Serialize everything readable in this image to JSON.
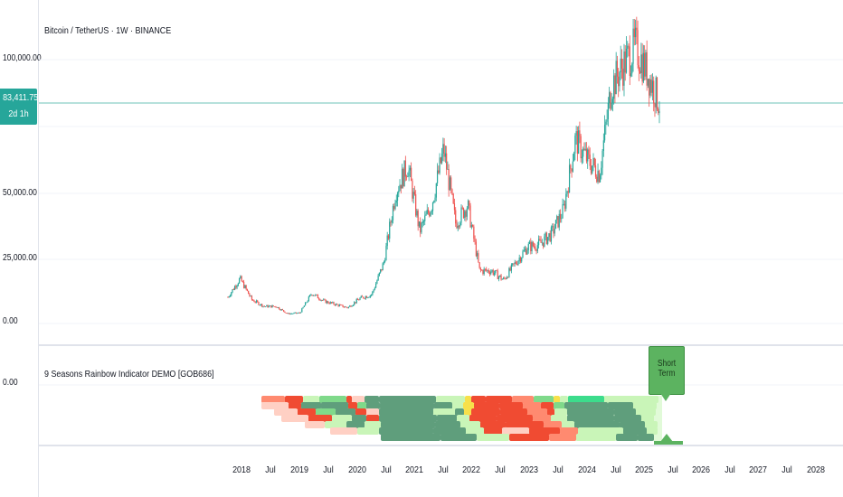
{
  "header": {
    "title": "Bitcoin / TetherUS · 1W · BINANCE"
  },
  "price_axis": {
    "labels": [
      "100,000.00",
      "50,000.00",
      "25,000.00",
      "0.00"
    ],
    "current_price": "83,411.75",
    "countdown": "2d 1h",
    "current_price_color": "#26a69a"
  },
  "indicator": {
    "title": "9 Seasons Rainbow Indicator DEMO [GOB686]",
    "axis_label": "0.00",
    "callout": "Short Term",
    "callout_color": "#5cb360"
  },
  "time_axis": {
    "labels": [
      "2018",
      "Jul",
      "2019",
      "Jul",
      "2020",
      "Jul",
      "2021",
      "Jul",
      "2022",
      "Jul",
      "2023",
      "Jul",
      "2024",
      "Jul",
      "2025",
      "Jul",
      "2026",
      "Jul",
      "2027",
      "Jul",
      "2028"
    ]
  },
  "colors": {
    "up": "#26a69a",
    "down": "#ef5350",
    "rainbow": [
      "#f04b32",
      "#ff8a70",
      "#ffd0c4",
      "#f7e04a",
      "#c9f5b8",
      "#7fd98a",
      "#5f9e7c",
      "#3cdc8c"
    ]
  },
  "chart_data": {
    "type": "candlestick",
    "series": [
      {
        "name": "Bitcoin / TetherUS · 1W · BINANCE"
      }
    ],
    "x": [
      "2017-12",
      "2018-01",
      "2018-03",
      "2018-06",
      "2018-09",
      "2018-12",
      "2019-03",
      "2019-06",
      "2019-09",
      "2019-12",
      "2020-03",
      "2020-06",
      "2020-09",
      "2020-12",
      "2021-02",
      "2021-04",
      "2021-06",
      "2021-08",
      "2021-11",
      "2022-01",
      "2022-03",
      "2022-06",
      "2022-09",
      "2022-11",
      "2023-02",
      "2023-04",
      "2023-07",
      "2023-10",
      "2024-01",
      "2024-03",
      "2024-06",
      "2024-08",
      "2024-11",
      "2024-12",
      "2025-01",
      "2025-02",
      "2025-03"
    ],
    "close": [
      10000,
      17000,
      9000,
      6500,
      6500,
      3700,
      4000,
      11500,
      8500,
      7200,
      6000,
      9500,
      11000,
      23000,
      50000,
      60000,
      35000,
      45000,
      66000,
      38000,
      45000,
      20000,
      20000,
      16500,
      23000,
      29000,
      30000,
      34000,
      43000,
      70000,
      62000,
      57000,
      90000,
      98000,
      105000,
      95000,
      83411
    ],
    "ylim": [
      0,
      110000
    ],
    "yticks": [
      "100,000.00",
      "50,000.00",
      "25,000.00",
      "0.00"
    ]
  }
}
